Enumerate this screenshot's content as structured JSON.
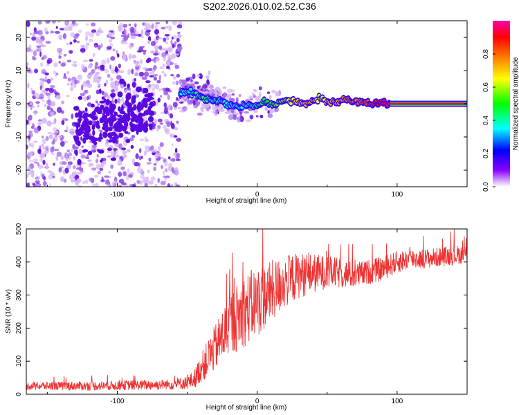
{
  "title": "S202.2026.010.02.52.C36",
  "chart_data": [
    {
      "type": "heatmap",
      "name": "spectrogram",
      "xlabel": "Height of straight line (km)",
      "ylabel": "Frequency (Hz)",
      "xlim": [
        -165,
        150
      ],
      "ylim": [
        -25,
        25
      ],
      "xticks": [
        -100,
        0,
        100
      ],
      "yticks": [
        -20,
        -10,
        0,
        10,
        20
      ],
      "colorbar": {
        "label": "Normalized spectral amplitude",
        "range": [
          0,
          1
        ],
        "ticks": [
          "0.0",
          "0.2",
          "0.4",
          "0.6",
          "0.8"
        ]
      },
      "ridge": {
        "x": [
          -55,
          -50,
          -45,
          -40,
          -35,
          -30,
          -25,
          -20,
          -15,
          -10,
          -5,
          0,
          5,
          10,
          15,
          20,
          25,
          30,
          35,
          40,
          45,
          50,
          55,
          60,
          65,
          70,
          75,
          80,
          85,
          90,
          95,
          100,
          150
        ],
        "freq": [
          3,
          3.5,
          3,
          2,
          1.5,
          1,
          0.5,
          -0.5,
          -0.5,
          -1,
          -0.5,
          -0.5,
          0.5,
          0,
          0.5,
          1,
          0.5,
          0.5,
          0,
          0.5,
          2,
          0.5,
          0.5,
          1,
          1,
          0.5,
          0.5,
          0,
          0,
          0,
          0,
          0,
          0
        ],
        "amplitude": [
          0.35,
          0.35,
          0.4,
          0.45,
          0.45,
          0.4,
          0.4,
          0.35,
          0.35,
          0.35,
          0.4,
          0.45,
          0.5,
          0.5,
          0.55,
          0.6,
          0.65,
          0.7,
          0.7,
          0.75,
          0.6,
          0.7,
          0.75,
          0.75,
          0.8,
          0.8,
          0.8,
          0.85,
          0.9,
          0.9,
          0.95,
          1.0,
          1.0
        ]
      }
    },
    {
      "type": "line",
      "name": "snr",
      "xlabel": "Height of straight line (km)",
      "ylabel": "SNR (10 * v/v)",
      "xlim": [
        -165,
        150
      ],
      "ylim": [
        0,
        500
      ],
      "xticks": [
        -100,
        0,
        100
      ],
      "yticks": [
        0,
        100,
        200,
        300,
        400,
        500
      ],
      "color": "#ee3333",
      "envelope": {
        "x": [
          -165,
          -120,
          -60,
          -50,
          -45,
          -40,
          -30,
          -20,
          -10,
          0,
          10,
          20,
          30,
          40,
          50,
          60,
          70,
          80,
          90,
          100,
          110,
          120,
          130,
          140,
          150
        ],
        "mean": [
          25,
          25,
          30,
          35,
          45,
          80,
          140,
          210,
          250,
          280,
          310,
          340,
          360,
          365,
          370,
          365,
          360,
          370,
          380,
          400,
          410,
          410,
          415,
          420,
          425
        ],
        "spread": [
          12,
          14,
          16,
          20,
          28,
          45,
          70,
          95,
          110,
          110,
          95,
          80,
          70,
          60,
          50,
          45,
          40,
          38,
          36,
          34,
          32,
          30,
          30,
          30,
          28
        ]
      }
    }
  ]
}
